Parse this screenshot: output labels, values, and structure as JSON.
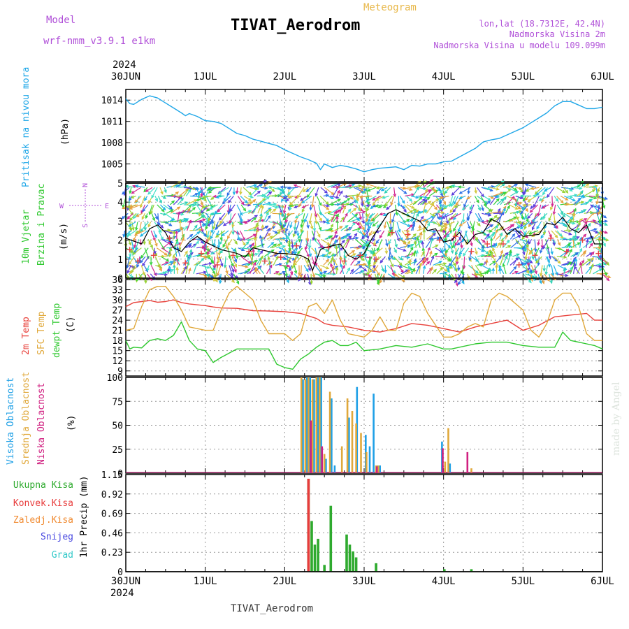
{
  "header": {
    "model_label": "Model",
    "model_name": "wrf-nmm_v3.9.1 e1km",
    "title": "TIVAT_Aerodrom",
    "meteogram": "Meteogram",
    "lonlat": "lon,lat (18.7312E, 42.4N)",
    "alt1": "Nadmorska Visina 2m",
    "alt2": "Nadmorska Visina u modelu 109.099m",
    "footer": "TIVAT_Aerodrom",
    "watermark": "made by Angel"
  },
  "colors": {
    "pressure": "#1fa7e8",
    "t2m": "#e8403a",
    "sfc": "#e0a83a",
    "dew": "#2ec82e",
    "high": "#1fa0e6",
    "mid": "#e0a83a",
    "low": "#d02080",
    "total": "#2eaa2e",
    "conv": "#e83c3c",
    "frz": "#f08a30",
    "snow": "#4848e0",
    "grad": "#30c8c8",
    "purple": "#b050d8",
    "gold": "#e8b84a",
    "wind_line": "#000000"
  },
  "chart_data": {
    "x_axis": {
      "top_year": "2024",
      "bottom_year": "2024",
      "ticks": [
        "30JUN",
        "1JUL",
        "2JUL",
        "3JUL",
        "4JUL",
        "5JUL",
        "6JUL"
      ]
    },
    "panels": [
      {
        "type": "line",
        "name": "pressure",
        "ylabel": [
          "Pritisak na nivou mora",
          "(hPa)"
        ],
        "yticks": [
          1005,
          1008,
          1011,
          1014
        ],
        "ylim": [
          1002.5,
          1015.5
        ],
        "series": [
          {
            "color_key": "pressure",
            "x": [
              0,
              0.05,
              0.1,
              0.2,
              0.3,
              0.4,
              0.5,
              0.6,
              0.7,
              0.75,
              0.8,
              0.9,
              1.0,
              1.1,
              1.2,
              1.3,
              1.4,
              1.5,
              1.6,
              1.7,
              1.8,
              1.9,
              2.0,
              2.1,
              2.2,
              2.3,
              2.4,
              2.45,
              2.5,
              2.6,
              2.7,
              2.8,
              2.9,
              3.0,
              3.1,
              3.2,
              3.3,
              3.4,
              3.5,
              3.6,
              3.7,
              3.8,
              3.9,
              4.0,
              4.1,
              4.2,
              4.3,
              4.4,
              4.5,
              4.6,
              4.7,
              4.8,
              4.9,
              5.0,
              5.1,
              5.2,
              5.3,
              5.4,
              5.5,
              5.6,
              5.7,
              5.8,
              5.9,
              6.0
            ],
            "y": [
              1014.2,
              1013.5,
              1013.4,
              1014.1,
              1014.6,
              1014.3,
              1013.6,
              1012.9,
              1012.2,
              1011.8,
              1012.1,
              1011.7,
              1011.1,
              1011.0,
              1010.7,
              1010.0,
              1009.3,
              1009.0,
              1008.5,
              1008.2,
              1007.9,
              1007.6,
              1007.0,
              1006.5,
              1006.0,
              1005.6,
              1005.1,
              1004.2,
              1005.0,
              1004.5,
              1004.8,
              1004.6,
              1004.3,
              1003.9,
              1004.2,
              1004.4,
              1004.5,
              1004.6,
              1004.2,
              1004.8,
              1004.7,
              1005.0,
              1005.0,
              1005.3,
              1005.4,
              1006.0,
              1006.6,
              1007.2,
              1008.1,
              1008.4,
              1008.6,
              1009.1,
              1009.6,
              1010.1,
              1010.8,
              1011.5,
              1012.2,
              1013.2,
              1013.8,
              1013.8,
              1013.3,
              1012.8,
              1012.8,
              1013.0
            ]
          }
        ]
      },
      {
        "type": "wind_barbs",
        "name": "wind",
        "ylabel": [
          "10m Vjetar",
          "Brzina i Pravac",
          "(m/s)"
        ],
        "compass": [
          "N",
          "W",
          "E",
          "S"
        ],
        "yticks": [
          0,
          1,
          2,
          3,
          4,
          5
        ],
        "ylim": [
          0,
          5
        ],
        "speed": {
          "x": [
            0,
            0.2,
            0.3,
            0.4,
            0.5,
            0.6,
            0.7,
            0.8,
            0.9,
            1.0,
            1.2,
            1.4,
            1.5,
            1.6,
            1.8,
            1.9,
            2.0,
            2.2,
            2.3,
            2.35,
            2.45,
            2.5,
            2.7,
            2.8,
            2.9,
            3.0,
            3.1,
            3.3,
            3.4,
            3.6,
            3.7,
            3.8,
            3.9,
            4.0,
            4.1,
            4.2,
            4.3,
            4.4,
            4.5,
            4.6,
            4.7,
            4.8,
            4.9,
            5.0,
            5.2,
            5.3,
            5.4,
            5.5,
            5.6,
            5.7,
            5.8,
            5.9,
            6.0
          ],
          "y": [
            2.1,
            1.8,
            2.6,
            2.8,
            2.4,
            1.6,
            1.4,
            1.9,
            2.2,
            1.9,
            1.5,
            1.3,
            1.1,
            1.6,
            1.4,
            1.3,
            1.3,
            1.2,
            1.0,
            0.4,
            1.5,
            1.6,
            1.8,
            1.2,
            1.0,
            1.3,
            2.1,
            3.4,
            3.6,
            3.2,
            3.0,
            2.5,
            2.6,
            1.9,
            2.0,
            2.4,
            1.8,
            2.3,
            2.4,
            3.1,
            2.9,
            2.3,
            2.6,
            2.2,
            2.3,
            2.9,
            2.8,
            3.2,
            2.6,
            2.4,
            2.8,
            1.8,
            1.8
          ]
        },
        "gust_marks": {
          "x": [
            0.05,
            0.15,
            0.35,
            0.55,
            0.75,
            0.95,
            1.15,
            1.35,
            1.55,
            1.75,
            1.95,
            2.15,
            2.55,
            2.75,
            2.95,
            3.15,
            3.35,
            3.55,
            3.75,
            3.95,
            4.15,
            4.35,
            4.55,
            4.75,
            4.95,
            5.15,
            5.35,
            5.55,
            5.75,
            5.95
          ],
          "y": [
            1.5,
            0.9,
            1.2,
            2.1,
            0.8,
            1.3,
            0.7,
            1.2,
            1.4,
            0.9,
            1.1,
            1.7,
            1.6,
            0.9,
            1.2,
            1.0,
            2.4,
            2.3,
            0.9,
            2.0,
            2.2,
            1.4,
            1.8,
            1.8,
            0.7,
            1.2,
            2.1,
            1.4,
            2.0,
            1.3
          ]
        }
      },
      {
        "type": "line",
        "name": "temperature",
        "ylabel": [
          "2m Temp",
          "SFC Temp",
          "dewpt Temp",
          "(C)"
        ],
        "yticks": [
          9,
          12,
          15,
          18,
          21,
          24,
          27,
          30,
          33,
          36
        ],
        "ylim": [
          7.5,
          36
        ],
        "series": [
          {
            "color_key": "t2m",
            "x": [
              0,
              0.1,
              0.2,
              0.3,
              0.4,
              0.5,
              0.6,
              0.7,
              0.8,
              1.0,
              1.1,
              1.2,
              1.4,
              1.6,
              1.8,
              2.0,
              2.2,
              2.4,
              2.5,
              2.6,
              2.8,
              3.0,
              3.2,
              3.4,
              3.6,
              3.8,
              4.0,
              4.2,
              4.4,
              4.6,
              4.8,
              5.0,
              5.2,
              5.4,
              5.6,
              5.8,
              5.9,
              6.0
            ],
            "y": [
              28,
              29.2,
              29.5,
              29.8,
              29.3,
              29.5,
              30,
              29.2,
              28.8,
              28.3,
              27.9,
              27.6,
              27.5,
              26.8,
              26.7,
              26.5,
              26,
              24.5,
              23,
              22.5,
              22,
              21,
              20.5,
              21.5,
              23,
              22.5,
              21.5,
              20.5,
              22,
              23,
              24,
              21,
              22.5,
              25,
              25.5,
              26,
              24,
              24
            ]
          },
          {
            "color_key": "sfc",
            "x": [
              0,
              0.1,
              0.2,
              0.3,
              0.4,
              0.5,
              0.6,
              0.7,
              0.8,
              1.0,
              1.1,
              1.2,
              1.3,
              1.4,
              1.5,
              1.6,
              1.7,
              1.8,
              2.0,
              2.1,
              2.2,
              2.3,
              2.4,
              2.5,
              2.6,
              2.7,
              2.8,
              3.0,
              3.1,
              3.2,
              3.3,
              3.4,
              3.5,
              3.6,
              3.7,
              3.8,
              4.0,
              4.1,
              4.2,
              4.3,
              4.4,
              4.5,
              4.6,
              4.7,
              4.8,
              5.0,
              5.1,
              5.2,
              5.3,
              5.4,
              5.5,
              5.6,
              5.7,
              5.8,
              5.9,
              6.0
            ],
            "y": [
              21,
              21.5,
              28,
              33,
              34,
              34,
              31,
              27,
              22,
              21,
              21,
              27,
              32,
              34,
              32,
              30,
              24,
              20,
              20,
              18,
              20,
              28,
              29,
              26,
              30,
              24,
              20,
              19,
              21,
              25,
              21,
              21,
              29,
              32,
              31,
              26,
              19,
              19,
              20,
              22,
              23,
              22,
              30,
              32,
              31,
              27,
              21,
              19,
              23,
              30,
              32,
              32,
              28,
              20,
              18,
              18
            ]
          },
          {
            "color_key": "dew",
            "x": [
              0,
              0.05,
              0.1,
              0.2,
              0.3,
              0.4,
              0.5,
              0.6,
              0.7,
              0.8,
              0.9,
              1.0,
              1.1,
              1.2,
              1.4,
              1.6,
              1.8,
              1.9,
              2.0,
              2.1,
              2.2,
              2.3,
              2.4,
              2.5,
              2.6,
              2.7,
              2.8,
              2.9,
              3.0,
              3.2,
              3.4,
              3.6,
              3.8,
              4.0,
              4.1,
              4.2,
              4.4,
              4.6,
              4.8,
              5.0,
              5.2,
              5.4,
              5.5,
              5.6,
              5.7,
              5.8,
              5.9,
              6.0
            ],
            "y": [
              18,
              15.5,
              16,
              15.8,
              18,
              18.5,
              18,
              19.5,
              23.5,
              18,
              15.5,
              15,
              11.5,
              13,
              15.5,
              15.5,
              15.5,
              11,
              10,
              9.5,
              12.5,
              14,
              16,
              17.5,
              18,
              16.5,
              16.5,
              17.5,
              15,
              15.5,
              16.5,
              16,
              17,
              15.5,
              15.5,
              16,
              17,
              17.5,
              17.5,
              16.5,
              16,
              16,
              20.5,
              18,
              17.5,
              17,
              16.5,
              15.5
            ]
          }
        ]
      },
      {
        "type": "bar",
        "name": "clouds",
        "ylabel": [
          "Visoka Oblacnost",
          "Srednja Oblacnost",
          "Niska Oblacnost",
          "(%)"
        ],
        "yticks": [
          0,
          25,
          50,
          75,
          100
        ],
        "ylim": [
          0,
          100
        ],
        "series": [
          {
            "name": "Visoka Oblacnost",
            "color_key": "high",
            "x": [
              2.23,
              2.28,
              2.32,
              2.37,
              2.42,
              2.46,
              2.52,
              2.59,
              2.63,
              2.81,
              2.91,
              3.02,
              3.07,
              3.12,
              3.17,
              3.2,
              3.98,
              4.08
            ],
            "y": [
              98,
              100,
              100,
              98,
              100,
              100,
              15,
              78,
              8,
              58,
              90,
              40,
              28,
              83,
              8,
              8,
              33,
              10
            ]
          },
          {
            "name": "Srednja Oblacnost",
            "color_key": "mid",
            "x": [
              2.21,
              2.26,
              2.3,
              2.35,
              2.4,
              2.44,
              2.5,
              2.57,
              2.72,
              2.79,
              2.85,
              2.9,
              2.96,
              3.03,
              3.15,
              3.18,
              4.02,
              4.06,
              4.35
            ],
            "y": [
              100,
              98,
              100,
              98,
              100,
              100,
              20,
              85,
              28,
              78,
              65,
              52,
              42,
              22,
              8,
              8,
              12,
              47,
              5
            ]
          },
          {
            "name": "Niska Oblacnost",
            "color_key": "low",
            "x": [
              2.33,
              2.47,
              3.16,
              3.99,
              4.3
            ],
            "y": [
              55,
              28,
              7,
              26,
              22
            ]
          }
        ]
      },
      {
        "type": "bar",
        "name": "precip",
        "ylabel": [
          "1hr Precip (mm)"
        ],
        "legend": [
          "Ukupna Kisa",
          "Konvek.Kisa",
          "Zaledj.Kisa",
          "Snijeg",
          "Grad"
        ],
        "yticks": [
          0,
          0.23,
          0.46,
          0.69,
          0.92,
          1.15
        ],
        "ylim": [
          0,
          1.15
        ],
        "series": [
          {
            "name": "Ukupna Kisa",
            "color_key": "total",
            "x": [
              2.3,
              2.34,
              2.38,
              2.42,
              2.5,
              2.58,
              2.78,
              2.82,
              2.86,
              2.9,
              3.15,
              4.01,
              4.35
            ],
            "y": [
              1.1,
              0.6,
              0.32,
              0.39,
              0.08,
              0.78,
              0.44,
              0.32,
              0.24,
              0.17,
              0.1,
              0.03,
              0.03
            ]
          },
          {
            "name": "Konvek.Kisa",
            "color_key": "conv",
            "x": [
              2.3
            ],
            "y": [
              1.1
            ]
          }
        ]
      }
    ]
  }
}
